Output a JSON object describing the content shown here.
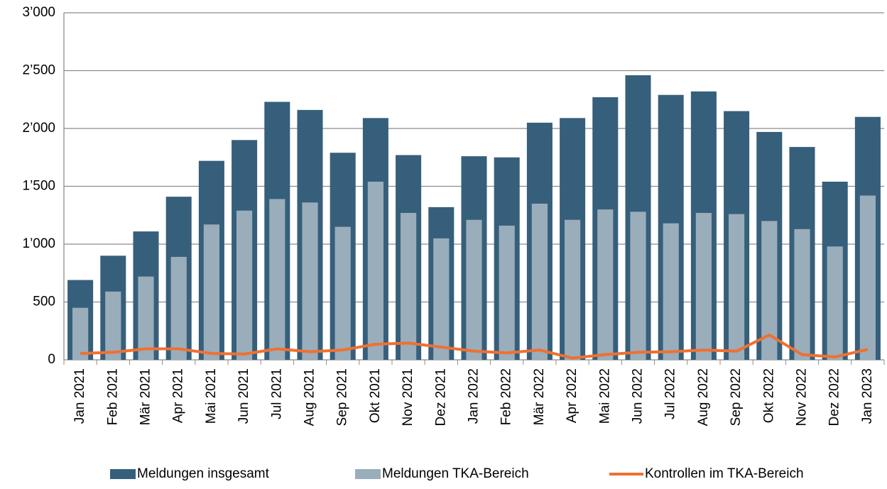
{
  "chart_data": {
    "type": "bar",
    "categories": [
      "Jan 2021",
      "Feb 2021",
      "Mär 2021",
      "Apr 2021",
      "Mai 2021",
      "Jun 2021",
      "Jul 2021",
      "Aug 2021",
      "Sep 2021",
      "Okt 2021",
      "Nov 2021",
      "Dez 2021",
      "Jan 2022",
      "Feb 2022",
      "Mär 2022",
      "Apr 2022",
      "Mai 2022",
      "Jun 2022",
      "Jul 2022",
      "Aug 2022",
      "Sep 2022",
      "Okt 2022",
      "Nov 2022",
      "Dez 2022",
      "Jan 2023"
    ],
    "series": [
      {
        "name": "Meldungen insgesamt",
        "color": "#365f7b",
        "type": "bar",
        "values": [
          690,
          900,
          1110,
          1410,
          1720,
          1900,
          2230,
          2160,
          1790,
          2090,
          1770,
          1320,
          1760,
          1750,
          2050,
          2090,
          2270,
          2460,
          2290,
          2320,
          2150,
          1970,
          1840,
          1540,
          2100
        ]
      },
      {
        "name": "Meldungen TKA-Bereich",
        "color": "#9aadbb",
        "type": "bar",
        "values": [
          450,
          590,
          720,
          890,
          1170,
          1290,
          1390,
          1360,
          1150,
          1540,
          1270,
          1050,
          1210,
          1160,
          1350,
          1210,
          1300,
          1280,
          1180,
          1270,
          1260,
          1200,
          1130,
          980,
          1420
        ]
      },
      {
        "name": "Kontrollen im TKA-Bereich",
        "color": "#f07030",
        "type": "line",
        "values": [
          55,
          65,
          95,
          95,
          55,
          50,
          95,
          70,
          85,
          135,
          145,
          110,
          75,
          60,
          85,
          15,
          45,
          65,
          70,
          85,
          75,
          215,
          45,
          25,
          90
        ]
      }
    ],
    "ylim": [
      0,
      3000
    ],
    "yticks": [
      0,
      500,
      {
        "value": 1000,
        "label": "1’000"
      },
      {
        "value": 1500,
        "label": "1’500"
      },
      {
        "value": 2000,
        "label": "2’000"
      },
      {
        "value": 2500,
        "label": "2’500"
      },
      {
        "value": 3000,
        "label": "3’000"
      }
    ],
    "grid": true
  }
}
